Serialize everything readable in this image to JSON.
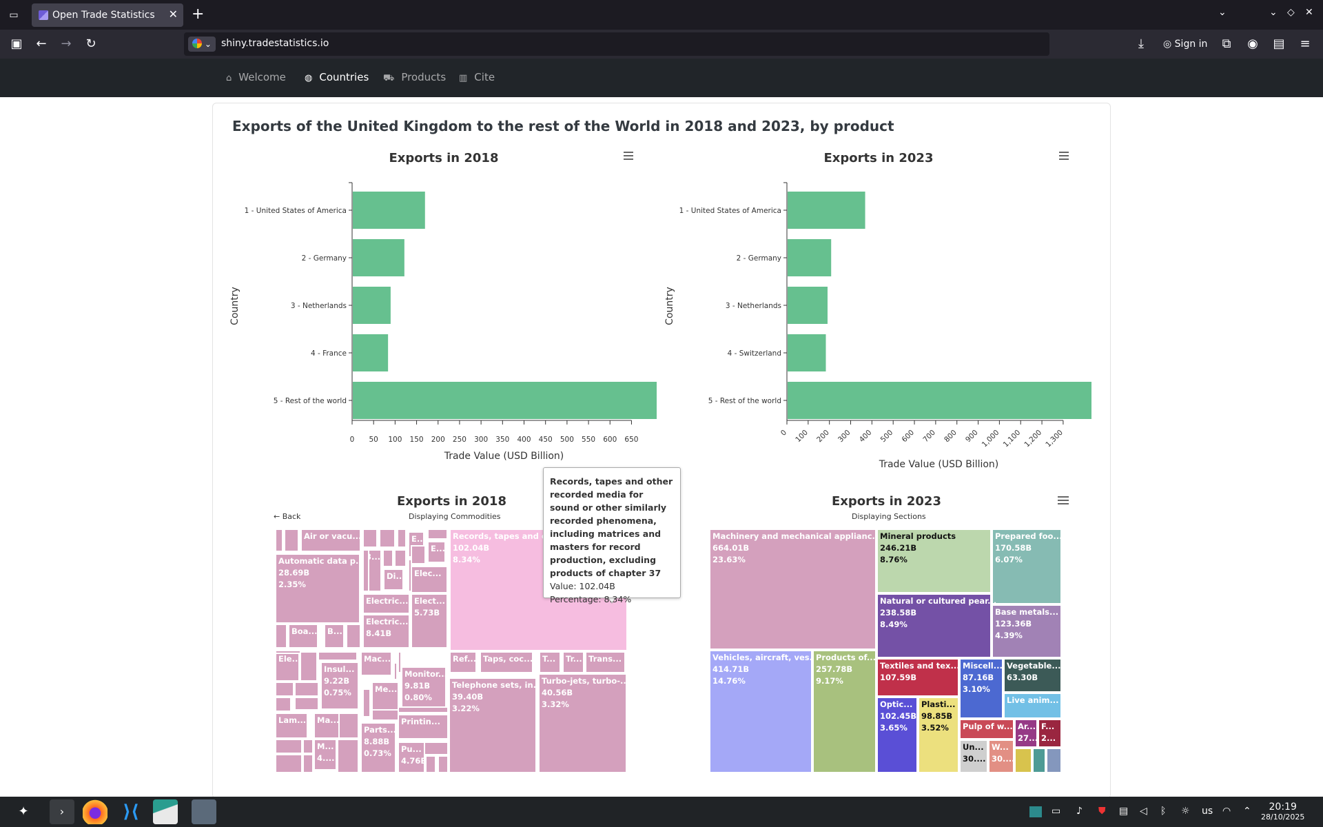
{
  "browser": {
    "tab_title": "Open Trade Statistics",
    "url_host": "shiny.tradestatistics.io",
    "sign_in": "Sign in"
  },
  "nav": {
    "items": [
      {
        "label": "Welcome",
        "icon": "home-icon"
      },
      {
        "label": "Countries",
        "icon": "globe-icon",
        "active": true
      },
      {
        "label": "Products",
        "icon": "cart-icon"
      },
      {
        "label": "Cite",
        "icon": "book-icon"
      }
    ]
  },
  "page_title": "Exports of the United Kingdom to the rest of the World in 2018 and 2023, by product",
  "chart_data": [
    {
      "type": "bar",
      "orientation": "horizontal",
      "title": "Exports in 2018",
      "xlabel": "Trade Value (USD Billion)",
      "ylabel": "Country",
      "categories": [
        "1 - United States of America",
        "2 - Germany",
        "3 - Netherlands",
        "4 - France",
        "5 - Rest of the world"
      ],
      "values": [
        168,
        120,
        88,
        82,
        707
      ],
      "xlim": [
        0,
        707
      ],
      "xticks": [
        "0",
        "50",
        "100",
        "150",
        "200",
        "250",
        "300",
        "350",
        "400",
        "450",
        "500",
        "550",
        "600",
        "650"
      ],
      "color": "#66c08f"
    },
    {
      "type": "bar",
      "orientation": "horizontal",
      "title": "Exports in 2023",
      "xlabel": "Trade Value (USD Billion)",
      "ylabel": "Country",
      "categories": [
        "1 - United States of America",
        "2 - Germany",
        "3 - Netherlands",
        "4 - Switzerland",
        "5 - Rest of the world"
      ],
      "values": [
        365,
        205,
        188,
        180,
        1430
      ],
      "xlim": [
        0,
        1430
      ],
      "xticks": [
        "0",
        "100",
        "200",
        "300",
        "400",
        "500",
        "600",
        "700",
        "800",
        "900",
        "1,000",
        "1,100",
        "1,200",
        "1,300"
      ],
      "color": "#66c08f"
    }
  ],
  "treemap_2018": {
    "title": "Exports in 2018",
    "subtitle": "Displaying Commodities",
    "back": "← Back",
    "labeled_tiles": [
      {
        "label": "Records, tapes and ot...",
        "value": "102.04B",
        "pct": "8.34%",
        "highlight": true
      },
      {
        "label": "Automatic data p...",
        "value": "28.69B",
        "pct": "2.35%"
      },
      {
        "label": "Air or vacu...",
        "value": "",
        "pct": ""
      },
      {
        "label": "Telephone sets, in...",
        "value": "39.40B",
        "pct": "3.22%"
      },
      {
        "label": "Turbo-jets, turbo-...",
        "value": "40.56B",
        "pct": "3.32%"
      },
      {
        "label": "Electric...",
        "value": "8.41B",
        "pct": ""
      },
      {
        "label": "Elect...",
        "value": "5.73B",
        "pct": ""
      },
      {
        "label": "Insul...",
        "value": "9.22B",
        "pct": "0.75%"
      },
      {
        "label": "Monitor...",
        "value": "9.81B",
        "pct": "0.80%"
      },
      {
        "label": "Parts...",
        "value": "8.88B",
        "pct": "0.73%"
      },
      {
        "label": "Pu...",
        "value": "4.76B",
        "pct": ""
      },
      {
        "label": "Printin...",
        "value": "",
        "pct": ""
      },
      {
        "label": "Taps, coc...",
        "value": "",
        "pct": ""
      },
      {
        "label": "Trans...",
        "value": "",
        "pct": ""
      },
      {
        "label": "Ref...",
        "value": "",
        "pct": ""
      },
      {
        "label": "Electric...",
        "value": "",
        "pct": ""
      },
      {
        "label": "Elec...",
        "value": "",
        "pct": ""
      },
      {
        "label": "Mac...",
        "value": "",
        "pct": ""
      },
      {
        "label": "Me...",
        "value": "",
        "pct": ""
      },
      {
        "label": "Ele...",
        "value": "",
        "pct": ""
      },
      {
        "label": "Boa...",
        "value": "",
        "pct": ""
      },
      {
        "label": "B...",
        "value": "",
        "pct": ""
      },
      {
        "label": "Lam...",
        "value": "",
        "pct": ""
      },
      {
        "label": "Ma...",
        "value": "",
        "pct": ""
      },
      {
        "label": "M...",
        "value": "4....",
        "pct": ""
      },
      {
        "label": "Di...",
        "value": "",
        "pct": ""
      },
      {
        "label": "3...",
        "value": "",
        "pct": ""
      },
      {
        "label": "T...",
        "value": "",
        "pct": ""
      },
      {
        "label": "Tr...",
        "value": "",
        "pct": ""
      },
      {
        "label": "E...",
        "value": "3...",
        "pct": ""
      },
      {
        "label": "E...",
        "value": "",
        "pct": ""
      }
    ]
  },
  "tooltip": {
    "name": "Records, tapes and other recorded media for sound or other similarly recorded phenomena, including matrices and masters for record production, excluding products of chapter 37",
    "value": "Value: 102.04B",
    "pct": "Percentage: 8.34%"
  },
  "treemap_2023": {
    "title": "Exports in 2023",
    "subtitle": "Displaying Sections",
    "tiles": [
      {
        "label": "Machinery and mechanical applianc...",
        "value": "664.01B",
        "pct": "23.63%",
        "color": "#d4a0bd"
      },
      {
        "label": "Mineral products",
        "value": "246.21B",
        "pct": "8.76%",
        "color": "#bcd7ad"
      },
      {
        "label": "Prepared foo...",
        "value": "170.58B",
        "pct": "6.07%",
        "color": "#86bbb3"
      },
      {
        "label": "Natural or cultured pear...",
        "value": "238.58B",
        "pct": "8.49%",
        "color": "#7451a6"
      },
      {
        "label": "Base metals...",
        "value": "123.36B",
        "pct": "4.39%",
        "color": "#a182b5"
      },
      {
        "label": "Vehicles, aircraft, ves...",
        "value": "414.71B",
        "pct": "14.76%",
        "color": "#a4a8f7"
      },
      {
        "label": "Products of...",
        "value": "257.78B",
        "pct": "9.17%",
        "color": "#a8c17e"
      },
      {
        "label": "Textiles and tex...",
        "value": "107.59B",
        "pct": "",
        "color": "#c0304a"
      },
      {
        "label": "Miscell...",
        "value": "87.16B",
        "pct": "3.10%",
        "color": "#4c69d1"
      },
      {
        "label": "Vegetable...",
        "value": "63.30B",
        "pct": "",
        "color": "#3c5a57"
      },
      {
        "label": "Live anim...",
        "value": "",
        "pct": "",
        "color": "#72c0e6"
      },
      {
        "label": "Optic...",
        "value": "102.45B",
        "pct": "3.65%",
        "color": "#5a4fd6"
      },
      {
        "label": "Plasti...",
        "value": "98.85B",
        "pct": "3.52%",
        "color": "#ece07e"
      },
      {
        "label": "Pulp of w...",
        "value": "",
        "pct": "",
        "color": "#c94a57"
      },
      {
        "label": "Ar...",
        "value": "27...",
        "pct": "",
        "color": "#963a86"
      },
      {
        "label": "F...",
        "value": "2...",
        "pct": "",
        "color": "#9a2640"
      },
      {
        "label": "Un...",
        "value": "30....",
        "pct": "",
        "color": "#cfcfcf"
      },
      {
        "label": "W...",
        "value": "30....",
        "pct": "",
        "color": "#e28f84"
      }
    ]
  },
  "taskbar": {
    "layout": "us",
    "time": "20:19",
    "date": "28/10/2025"
  }
}
